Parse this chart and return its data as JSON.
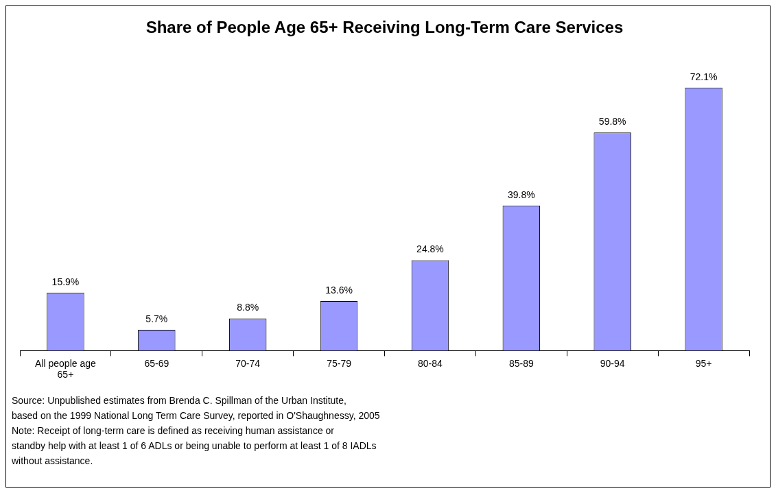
{
  "chart_data": {
    "type": "bar",
    "title": "Share of People Age 65+ Receiving Long-Term Care Services",
    "categories": [
      "All people age 65+",
      "65-69",
      "70-74",
      "75-79",
      "80-84",
      "85-89",
      "90-94",
      "95+"
    ],
    "values": [
      15.9,
      5.7,
      8.8,
      13.6,
      24.8,
      39.8,
      59.8,
      72.1
    ],
    "value_labels": [
      "15.9%",
      "5.7%",
      "8.8%",
      "13.6%",
      "24.8%",
      "39.8%",
      "59.8%",
      "72.1%"
    ],
    "color": "#9999ff",
    "grid": false,
    "legend": false,
    "annotations": [
      "Source: Unpublished estimates from Brenda C. Spillman of the Urban Institute,\nbased on the 1999 National Long Term Care Survey, reported in O'Shaughnessy, 2005",
      "Note: Receipt of long-term care is defined as receiving human assistance or\nstandby help with at least 1 of 6 ADLs or being unable to perform at least 1 of 8 IADLs\nwithout assistance."
    ]
  }
}
